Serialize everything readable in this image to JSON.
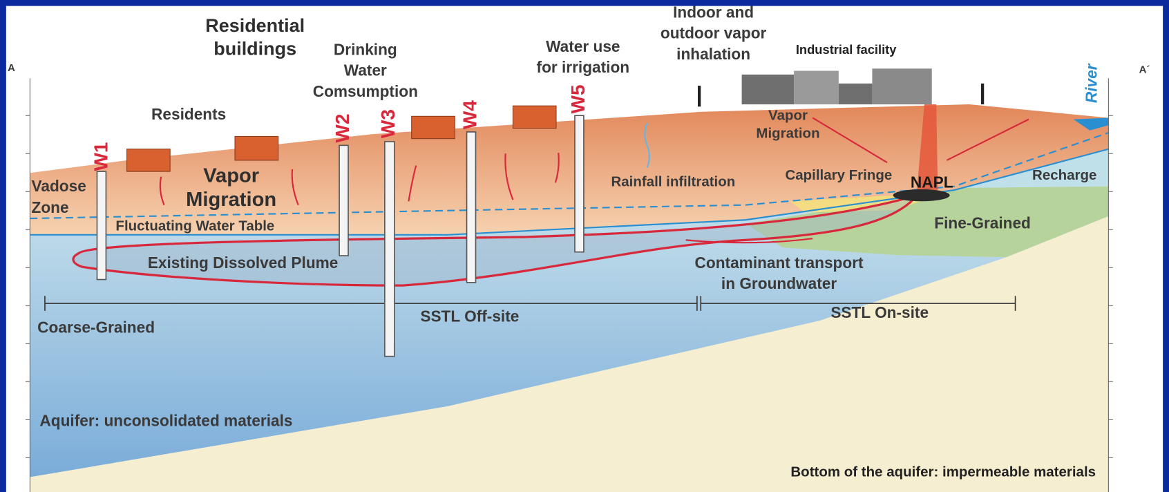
{
  "directions": {
    "left": "A",
    "right": "A´"
  },
  "labels": {
    "residential_buildings": [
      "Residential",
      "buildings"
    ],
    "drinking_water": [
      "Drinking",
      "Water",
      "Comsumption"
    ],
    "water_use": [
      "Water use",
      "for irrigation"
    ],
    "vapor_inhalation": [
      "Indoor and",
      "outdoor vapor",
      "inhalation"
    ],
    "industrial_facility": "Industrial facility",
    "river": "River",
    "residents": "Residents",
    "vapor_migration": [
      "Vapor",
      "Migration"
    ],
    "vadose_zone": [
      "Vadose",
      "Zone"
    ],
    "fluctuating_water_table": "Fluctuating Water Table",
    "existing_plume": "Existing Dissolved Plume",
    "coarse_grained": "Coarse-Grained",
    "sstl_off_site": "SSTL Off-site",
    "sstl_on_site": "SSTL On-site",
    "contaminant_transport": [
      "Contaminant transport",
      "in Groundwater"
    ],
    "rainfall_infiltration": "Rainfall infiltration",
    "capillary_fringe": "Capillary Fringe",
    "napl": "NAPL",
    "recharge": "Recharge",
    "fine_grained": "Fine-Grained",
    "vapor_migration_site": [
      "Vapor",
      "Migration"
    ],
    "aquifer": "Aquifer: unconsolidated materials",
    "aquifer_bottom": "Bottom of the aquifer: impermeable materials"
  },
  "wells": [
    "W1",
    "W2",
    "W3",
    "W4",
    "W5"
  ]
}
